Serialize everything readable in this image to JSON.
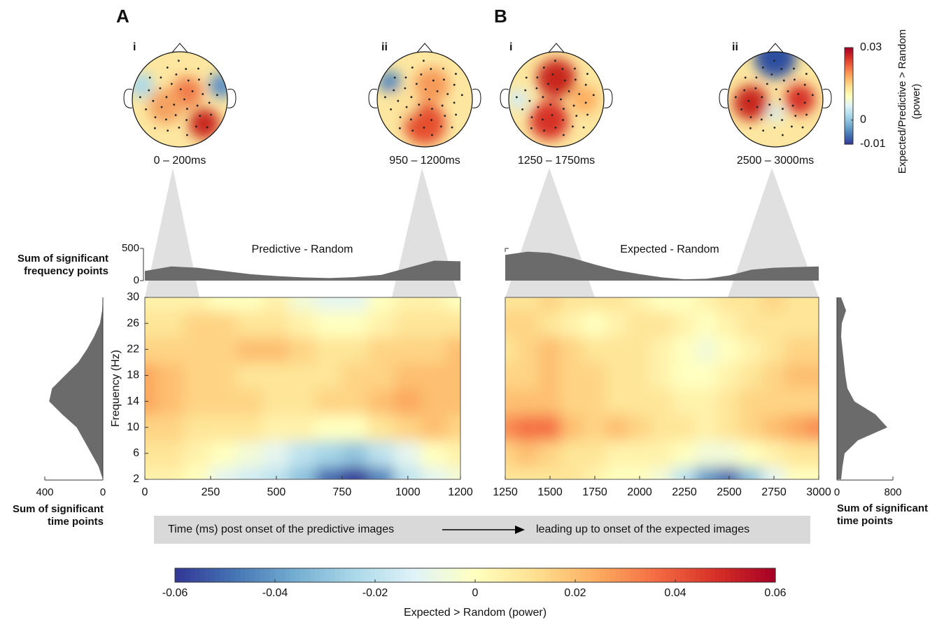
{
  "panel_labels": [
    "A",
    "B"
  ],
  "topomaps": [
    {
      "label": "i",
      "time": "0 – 200ms"
    },
    {
      "label": "ii",
      "time": "950 – 1200ms"
    },
    {
      "label": "i",
      "time": "1250 – 1750ms"
    },
    {
      "label": "ii",
      "time": "2500 – 3000ms"
    }
  ],
  "topo_colorbar": {
    "title": [
      "Expected/Predictive > Random",
      "(power)"
    ],
    "lim": [
      -0.01,
      0.03
    ],
    "ticks": [
      -0.01,
      0,
      0.03
    ]
  },
  "banner": {
    "left": "Time (ms) post onset of the predictive images",
    "right": "leading up to onset of the expected images"
  },
  "colorbar": {
    "title": "Expected > Random (power)",
    "lim": [
      -0.06,
      0.06
    ],
    "ticks": [
      -0.06,
      -0.04,
      -0.02,
      0,
      0.02,
      0.04,
      0.06
    ],
    "colormap": [
      "#313695",
      "#4575b4",
      "#74add1",
      "#abd9e9",
      "#e0f3f8",
      "#ffffbf",
      "#fee090",
      "#fdae61",
      "#f46d43",
      "#d73027",
      "#a50026"
    ]
  },
  "chart_data": [
    {
      "type": "area",
      "title": "Predictive - Random",
      "ylabel": [
        "Sum of significant",
        "frequency points"
      ],
      "x": [
        0,
        100,
        200,
        300,
        400,
        500,
        600,
        700,
        800,
        900,
        1000,
        1100,
        1200
      ],
      "values": [
        150,
        220,
        200,
        150,
        100,
        70,
        50,
        40,
        55,
        90,
        200,
        310,
        300
      ],
      "color": "#6b6b6b",
      "xlim": [
        0,
        1200
      ],
      "ylim": [
        0,
        500
      ],
      "yticks": [
        0,
        500
      ]
    },
    {
      "type": "area",
      "title": "Expected - Random",
      "x": [
        1250,
        1375,
        1500,
        1625,
        1750,
        1875,
        2000,
        2125,
        2250,
        2375,
        2500,
        2625,
        2750,
        2875,
        3000
      ],
      "values": [
        400,
        450,
        430,
        350,
        250,
        160,
        100,
        50,
        20,
        30,
        80,
        170,
        200,
        210,
        220
      ],
      "color": "#6b6b6b",
      "xlim": [
        1250,
        3000
      ],
      "ylim": [
        0,
        500
      ]
    },
    {
      "type": "heatmap",
      "ylabel": "Frequency (Hz)",
      "x": [
        0,
        100,
        200,
        300,
        400,
        500,
        600,
        700,
        800,
        900,
        1000,
        1100,
        1200
      ],
      "y": [
        2,
        6,
        10,
        14,
        18,
        22,
        26,
        30
      ],
      "z": [
        [
          0.005,
          0.005,
          0.0,
          -0.01,
          -0.015,
          -0.02,
          -0.03,
          -0.05,
          -0.06,
          -0.045,
          -0.02,
          -0.01,
          -0.005
        ],
        [
          0.01,
          0.01,
          0.005,
          0.0,
          -0.005,
          -0.01,
          -0.02,
          -0.025,
          -0.03,
          -0.02,
          -0.01,
          0.0,
          0.005
        ],
        [
          0.015,
          0.015,
          0.01,
          0.01,
          0.01,
          0.005,
          0.005,
          0.0,
          0.0,
          0.01,
          0.015,
          0.02,
          0.015
        ],
        [
          0.025,
          0.02,
          0.015,
          0.015,
          0.015,
          0.01,
          0.01,
          0.015,
          0.015,
          0.02,
          0.025,
          0.02,
          0.02
        ],
        [
          0.025,
          0.02,
          0.015,
          0.015,
          0.01,
          0.01,
          0.01,
          0.01,
          0.015,
          0.015,
          0.02,
          0.02,
          0.02
        ],
        [
          0.015,
          0.015,
          0.015,
          0.015,
          0.02,
          0.02,
          0.015,
          0.01,
          0.01,
          0.015,
          0.015,
          0.015,
          0.02
        ],
        [
          0.01,
          0.01,
          0.015,
          0.015,
          0.01,
          0.01,
          0.005,
          0.0,
          0.0,
          0.005,
          0.01,
          0.01,
          0.01
        ],
        [
          0.005,
          0.005,
          0.005,
          0.0,
          0.0,
          0.005,
          -0.005,
          -0.01,
          -0.01,
          0.0,
          0.005,
          0.005,
          0.0
        ]
      ],
      "xlim": [
        0,
        1200
      ],
      "xticks": [
        0,
        250,
        500,
        750,
        1000,
        1200
      ],
      "ylim": [
        2,
        30
      ],
      "yticks": [
        2,
        6,
        10,
        14,
        18,
        22,
        26,
        30
      ]
    },
    {
      "type": "heatmap",
      "x": [
        1250,
        1375,
        1500,
        1625,
        1750,
        1875,
        2000,
        2125,
        2250,
        2375,
        2500,
        2625,
        2750,
        2875,
        3000
      ],
      "y": [
        2,
        6,
        10,
        14,
        18,
        22,
        26,
        30
      ],
      "z": [
        [
          0.01,
          0.01,
          0.01,
          0.01,
          0.005,
          0.0,
          0.0,
          -0.005,
          -0.02,
          -0.04,
          -0.05,
          -0.03,
          -0.01,
          0.0,
          0.0
        ],
        [
          0.015,
          0.02,
          0.015,
          0.01,
          0.01,
          0.005,
          0.005,
          0.005,
          0.0,
          -0.005,
          -0.005,
          0.0,
          0.005,
          0.01,
          0.01
        ],
        [
          0.03,
          0.035,
          0.035,
          0.02,
          0.015,
          0.02,
          0.015,
          0.01,
          0.01,
          0.005,
          0.01,
          0.015,
          0.02,
          0.025,
          0.03
        ],
        [
          0.02,
          0.02,
          0.02,
          0.015,
          0.015,
          0.01,
          0.01,
          0.01,
          0.005,
          0.005,
          0.01,
          0.015,
          0.015,
          0.015,
          0.015
        ],
        [
          0.015,
          0.015,
          0.02,
          0.015,
          0.015,
          0.01,
          0.01,
          0.005,
          0.0,
          0.0,
          0.005,
          0.01,
          0.015,
          0.02,
          0.02
        ],
        [
          0.01,
          0.015,
          0.02,
          0.015,
          0.01,
          0.01,
          0.01,
          0.005,
          0.0,
          -0.005,
          0.0,
          0.005,
          0.01,
          0.015,
          0.015
        ],
        [
          0.015,
          0.015,
          0.01,
          0.005,
          0.0,
          0.005,
          0.01,
          0.01,
          0.005,
          0.0,
          0.005,
          0.01,
          0.01,
          0.01,
          0.01
        ],
        [
          0.01,
          0.01,
          0.015,
          0.01,
          0.01,
          0.01,
          0.005,
          0.0,
          0.0,
          0.005,
          0.01,
          0.01,
          0.015,
          0.01,
          0.01
        ]
      ],
      "xlim": [
        1250,
        3000
      ],
      "xticks": [
        1250,
        1500,
        1750,
        2000,
        2250,
        2500,
        2750,
        3000
      ],
      "ylim": [
        2,
        30
      ]
    },
    {
      "type": "area",
      "orientation": "horizontal",
      "xlabel": [
        "Sum of significant",
        "time points"
      ],
      "y": [
        2,
        4,
        6,
        8,
        10,
        12,
        14,
        16,
        18,
        20,
        22,
        24,
        26,
        28,
        30
      ],
      "values": [
        0,
        30,
        80,
        130,
        180,
        280,
        370,
        350,
        260,
        170,
        110,
        60,
        20,
        5,
        0
      ],
      "color": "#6b6b6b",
      "xlim": [
        400,
        0
      ],
      "xticks": [
        400,
        0
      ],
      "ylim": [
        2,
        30
      ]
    },
    {
      "type": "area",
      "orientation": "horizontal",
      "xlabel": [
        "Sum of significant",
        "time points"
      ],
      "y": [
        2,
        4,
        6,
        8,
        10,
        12,
        14,
        16,
        18,
        20,
        22,
        24,
        26,
        28,
        30
      ],
      "values": [
        60,
        80,
        110,
        300,
        720,
        550,
        250,
        150,
        120,
        100,
        80,
        60,
        70,
        130,
        60
      ],
      "color": "#6b6b6b",
      "xlim": [
        0,
        800
      ],
      "xticks": [
        0,
        800
      ],
      "ylim": [
        2,
        30
      ]
    }
  ]
}
